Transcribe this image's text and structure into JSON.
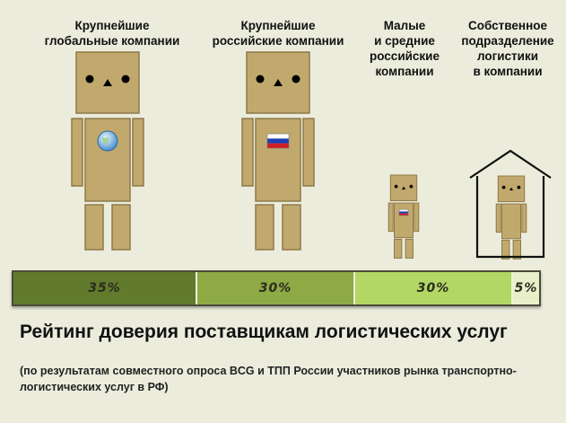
{
  "chart_data": {
    "type": "bar",
    "title": "Рейтинг доверия поставщикам логистических услуг",
    "subtitle": "(по результатам совместного опроса BCG и ТПП России участников рынка транспортно-логистических услуг в РФ)",
    "categories": [
      [
        "Крупнейшие",
        "глобальные компании"
      ],
      [
        "Крупнейшие",
        "российские компании"
      ],
      [
        "Малые",
        "и средние",
        "российские",
        "компании"
      ],
      [
        "Собственное",
        "подразделение",
        "логистики",
        "в компании"
      ]
    ],
    "values": [
      35,
      30,
      30,
      5
    ],
    "value_labels": [
      "35%",
      "30%",
      "30%",
      "5%"
    ],
    "unit": "%",
    "colors": {
      "segments": [
        "#617a2c",
        "#8daa44",
        "#b2d765",
        "#e9f0c9"
      ],
      "figure_body": "#c1a96e",
      "figure_shadow": "#8e7a48"
    },
    "figure_badges": [
      "globe-icon",
      "russian-flag-icon",
      "russian-flag-icon",
      "house-outline-icon"
    ]
  }
}
